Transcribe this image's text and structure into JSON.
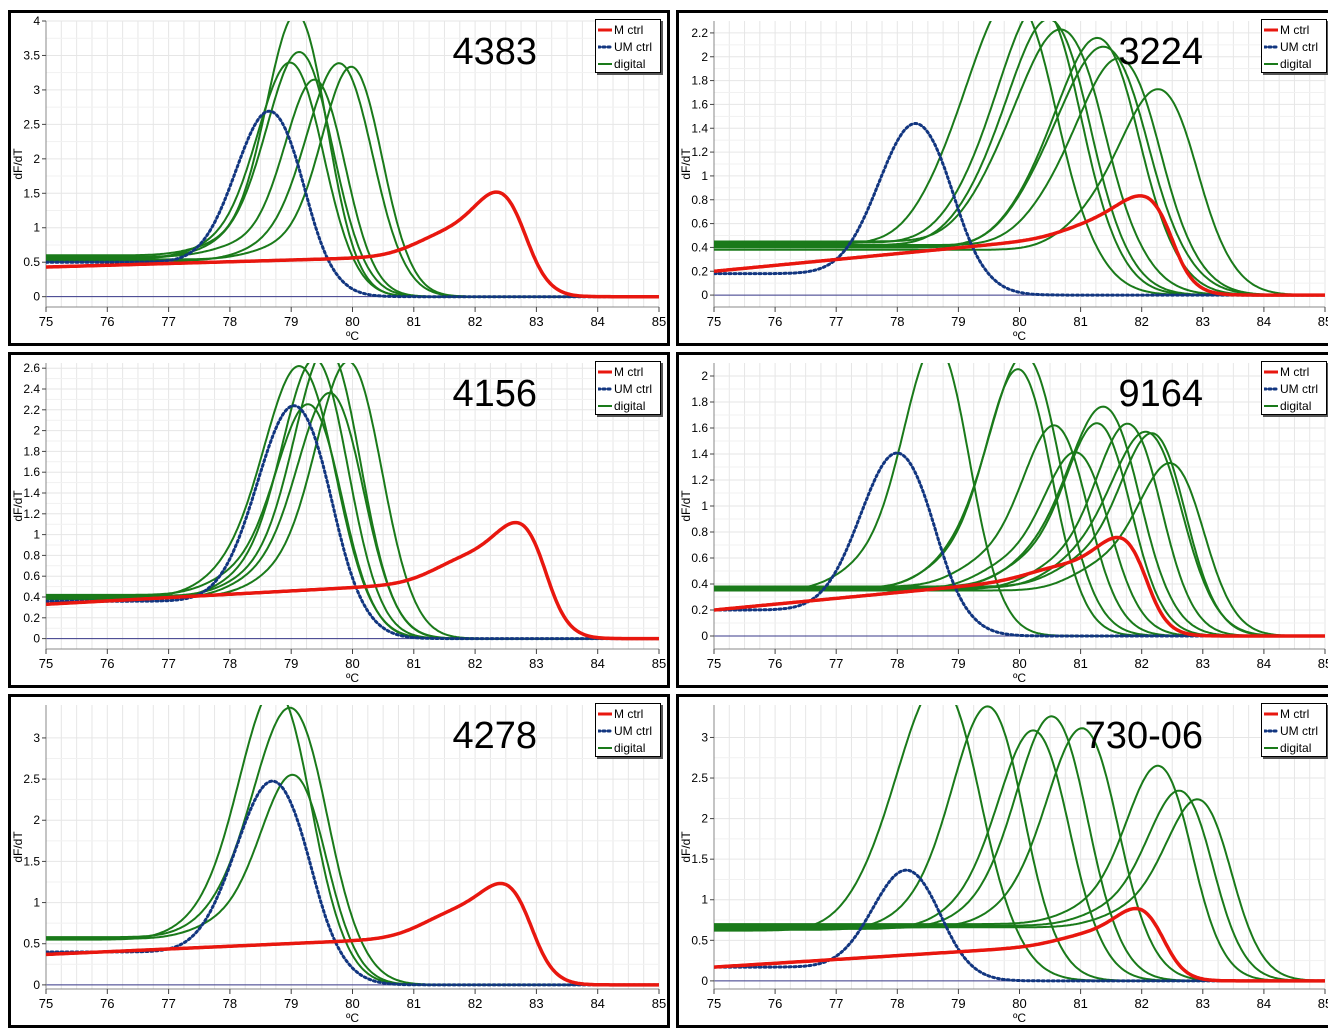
{
  "colors": {
    "m_ctrl": "#e8170f",
    "um_ctrl": "#123680",
    "digital": "#1a7a1a",
    "grid": "#e6e6e6",
    "baseline": "#3a3a8a"
  },
  "legend": {
    "m_ctrl": "M ctrl",
    "um_ctrl": "UM ctrl",
    "digital": "digital"
  },
  "chart_data": [
    {
      "type": "line",
      "title": "4383",
      "xlabel": "ºC",
      "ylabel": "dF/dT",
      "xlim": [
        75,
        85
      ],
      "ylim": [
        -0.15,
        4
      ],
      "xticks": [
        "75",
        "76",
        "77",
        "78",
        "79",
        "80",
        "81",
        "82",
        "83",
        "84",
        "85"
      ],
      "yticks": [
        "0",
        "0.5",
        "1",
        "1.5",
        "2",
        "2.5",
        "3",
        "3.5",
        "4"
      ],
      "ytick_values": [
        0,
        0.5,
        1,
        1.5,
        2,
        2.5,
        3,
        3.5,
        4
      ],
      "grid": true,
      "legend_position": "top-right",
      "m_ctrl": {
        "base_start": 0.43,
        "base_end": 0.62,
        "shoulder_x": 81.6,
        "shoulder_h": 0.32,
        "peak_x": 82.45,
        "peak_y": 1.45,
        "width": 0.42,
        "end": 0.0
      },
      "um_ctrl": {
        "base_start": 0.5,
        "peak_x": 78.65,
        "peak_y": 2.5,
        "width": 0.55,
        "end": 0.0
      },
      "digital": [
        {
          "base": 0.55,
          "peak_x": 79.0,
          "peak_y": 3.2,
          "width": 0.55
        },
        {
          "base": 0.6,
          "peak_x": 79.1,
          "peak_y": 3.9,
          "width": 0.5
        },
        {
          "base": 0.56,
          "peak_x": 79.15,
          "peak_y": 3.35,
          "width": 0.55
        },
        {
          "base": 0.58,
          "peak_x": 79.4,
          "peak_y": 2.95,
          "width": 0.5
        },
        {
          "base": 0.52,
          "peak_x": 79.8,
          "peak_y": 3.2,
          "width": 0.55
        },
        {
          "base": 0.54,
          "peak_x": 80.0,
          "peak_y": 3.15,
          "width": 0.5
        }
      ]
    },
    {
      "type": "line",
      "title": "3224",
      "xlabel": "ºC",
      "ylabel": "dF/dT",
      "xlim": [
        75,
        85
      ],
      "ylim": [
        -0.1,
        2.3
      ],
      "xticks": [
        "75",
        "76",
        "77",
        "78",
        "79",
        "80",
        "81",
        "82",
        "83",
        "84",
        "85"
      ],
      "yticks": [
        "0",
        "0.2",
        "0.4",
        "0.6",
        "0.8",
        "1",
        "1.2",
        "1.4",
        "1.6",
        "1.8",
        "2",
        "2.2"
      ],
      "ytick_values": [
        0,
        0.2,
        0.4,
        0.6,
        0.8,
        1,
        1.2,
        1.4,
        1.6,
        1.8,
        2,
        2.2
      ],
      "grid": true,
      "legend_position": "top-right",
      "m_ctrl": {
        "base_start": 0.2,
        "base_end": 0.55,
        "shoulder_x": 81.3,
        "shoulder_h": 0.1,
        "peak_x": 82.1,
        "peak_y": 0.82,
        "width": 0.45,
        "end": 0.0
      },
      "um_ctrl": {
        "base_start": 0.18,
        "peak_x": 78.3,
        "peak_y": 1.37,
        "width": 0.6,
        "end": 0.0
      },
      "digital": [
        {
          "base": 0.43,
          "peak_x": 79.9,
          "peak_y": 2.33,
          "width": 0.75
        },
        {
          "base": 0.44,
          "peak_x": 80.35,
          "peak_y": 2.27,
          "width": 0.7
        },
        {
          "base": 0.42,
          "peak_x": 80.5,
          "peak_y": 2.15,
          "width": 0.7
        },
        {
          "base": 0.45,
          "peak_x": 80.7,
          "peak_y": 2.05,
          "width": 0.75
        },
        {
          "base": 0.4,
          "peak_x": 81.3,
          "peak_y": 2.0,
          "width": 0.7
        },
        {
          "base": 0.41,
          "peak_x": 81.4,
          "peak_y": 1.92,
          "width": 0.75
        },
        {
          "base": 0.42,
          "peak_x": 81.65,
          "peak_y": 1.82,
          "width": 0.7
        },
        {
          "base": 0.38,
          "peak_x": 82.3,
          "peak_y": 1.58,
          "width": 0.65
        }
      ]
    },
    {
      "type": "line",
      "title": "4156",
      "xlabel": "ºC",
      "ylabel": "dF/dT",
      "xlim": [
        75,
        85
      ],
      "ylim": [
        -0.1,
        2.65
      ],
      "xticks": [
        "75",
        "76",
        "77",
        "78",
        "79",
        "80",
        "81",
        "82",
        "83",
        "84",
        "85"
      ],
      "yticks": [
        "0",
        "0.2",
        "0.4",
        "0.6",
        "0.8",
        "1",
        "1.2",
        "1.4",
        "1.6",
        "1.8",
        "2",
        "2.2",
        "2.4",
        "2.6"
      ],
      "ytick_values": [
        0,
        0.2,
        0.4,
        0.6,
        0.8,
        1,
        1.2,
        1.4,
        1.6,
        1.8,
        2,
        2.2,
        2.4,
        2.6
      ],
      "grid": true,
      "legend_position": "top-right",
      "m_ctrl": {
        "base_start": 0.33,
        "base_end": 0.58,
        "shoulder_x": 81.9,
        "shoulder_h": 0.22,
        "peak_x": 82.78,
        "peak_y": 1.08,
        "width": 0.42,
        "end": 0.0
      },
      "um_ctrl": {
        "base_start": 0.36,
        "peak_x": 79.05,
        "peak_y": 2.1,
        "width": 0.6,
        "end": 0.0
      },
      "digital": [
        {
          "base": 0.4,
          "peak_x": 79.15,
          "peak_y": 2.47,
          "width": 0.6
        },
        {
          "base": 0.42,
          "peak_x": 79.3,
          "peak_y": 2.1,
          "width": 0.55
        },
        {
          "base": 0.38,
          "peak_x": 79.4,
          "peak_y": 2.55,
          "width": 0.55
        },
        {
          "base": 0.41,
          "peak_x": 79.6,
          "peak_y": 2.65,
          "width": 0.55
        },
        {
          "base": 0.39,
          "peak_x": 79.65,
          "peak_y": 2.22,
          "width": 0.55
        },
        {
          "base": 0.4,
          "peak_x": 79.95,
          "peak_y": 2.52,
          "width": 0.55
        }
      ]
    },
    {
      "type": "line",
      "title": "9164",
      "xlabel": "ºC",
      "ylabel": "dF/dT",
      "xlim": [
        75,
        85
      ],
      "ylim": [
        -0.1,
        2.1
      ],
      "xticks": [
        "75",
        "76",
        "77",
        "78",
        "79",
        "80",
        "81",
        "82",
        "83",
        "84",
        "85"
      ],
      "yticks": [
        "0",
        "0.2",
        "0.4",
        "0.6",
        "0.8",
        "1",
        "1.2",
        "1.4",
        "1.6",
        "1.8",
        "2"
      ],
      "ytick_values": [
        0,
        0.2,
        0.4,
        0.6,
        0.8,
        1,
        1.2,
        1.4,
        1.6,
        1.8,
        2
      ],
      "grid": true,
      "legend_position": "top-right",
      "m_ctrl": {
        "base_start": 0.2,
        "base_end": 0.5,
        "shoulder_x": 80.7,
        "shoulder_h": 0.08,
        "peak_x": 81.7,
        "peak_y": 0.77,
        "width": 0.42,
        "end": 0.0
      },
      "um_ctrl": {
        "base_start": 0.2,
        "peak_x": 78.0,
        "peak_y": 1.33,
        "width": 0.6,
        "end": 0.0
      },
      "digital": [
        {
          "base": 0.35,
          "peak_x": 78.65,
          "peak_y": 2.12,
          "width": 0.55
        },
        {
          "base": 0.36,
          "peak_x": 80.0,
          "peak_y": 1.92,
          "width": 0.55
        },
        {
          "base": 0.37,
          "peak_x": 80.1,
          "peak_y": 2.02,
          "width": 0.6
        },
        {
          "base": 0.38,
          "peak_x": 80.6,
          "peak_y": 1.48,
          "width": 0.55
        },
        {
          "base": 0.36,
          "peak_x": 80.95,
          "peak_y": 1.28,
          "width": 0.55
        },
        {
          "base": 0.37,
          "peak_x": 81.3,
          "peak_y": 1.5,
          "width": 0.55
        },
        {
          "base": 0.38,
          "peak_x": 81.4,
          "peak_y": 1.62,
          "width": 0.6
        },
        {
          "base": 0.36,
          "peak_x": 81.8,
          "peak_y": 1.5,
          "width": 0.55
        },
        {
          "base": 0.37,
          "peak_x": 82.1,
          "peak_y": 1.43,
          "width": 0.6
        },
        {
          "base": 0.38,
          "peak_x": 82.2,
          "peak_y": 1.42,
          "width": 0.55
        },
        {
          "base": 0.35,
          "peak_x": 82.5,
          "peak_y": 1.2,
          "width": 0.55
        }
      ]
    },
    {
      "type": "line",
      "title": "4278",
      "xlabel": "ºC",
      "ylabel": "dF/dT",
      "xlim": [
        75,
        85
      ],
      "ylim": [
        -0.05,
        3.4
      ],
      "xticks": [
        "75",
        "76",
        "77",
        "78",
        "79",
        "80",
        "81",
        "82",
        "83",
        "84",
        "85"
      ],
      "yticks": [
        "0",
        "0.5",
        "1",
        "1.5",
        "2",
        "2.5",
        "3"
      ],
      "ytick_values": [
        0,
        0.5,
        1,
        1.5,
        2,
        2.5,
        3
      ],
      "grid": true,
      "legend_position": "top-right",
      "m_ctrl": {
        "base_start": 0.37,
        "base_end": 0.62,
        "shoulder_x": 81.7,
        "shoulder_h": 0.28,
        "peak_x": 82.55,
        "peak_y": 1.17,
        "width": 0.42,
        "end": 0.0
      },
      "um_ctrl": {
        "base_start": 0.4,
        "peak_x": 78.7,
        "peak_y": 2.32,
        "width": 0.6,
        "end": 0.0
      },
      "digital": [
        {
          "base": 0.55,
          "peak_x": 78.75,
          "peak_y": 3.4,
          "width": 0.6
        },
        {
          "base": 0.58,
          "peak_x": 79.0,
          "peak_y": 3.15,
          "width": 0.62
        },
        {
          "base": 0.56,
          "peak_x": 79.05,
          "peak_y": 2.35,
          "width": 0.55
        }
      ]
    },
    {
      "type": "line",
      "title": "730-06",
      "xlabel": "ºC",
      "ylabel": "dF/dT",
      "xlim": [
        75,
        85
      ],
      "ylim": [
        -0.1,
        3.4
      ],
      "xticks": [
        "75",
        "76",
        "77",
        "78",
        "79",
        "80",
        "81",
        "82",
        "83",
        "84",
        "85"
      ],
      "yticks": [
        "0",
        "0.5",
        "1",
        "1.5",
        "2",
        "2.5",
        "3"
      ],
      "ytick_values": [
        0,
        0.5,
        1,
        1.5,
        2,
        2.5,
        3
      ],
      "grid": true,
      "legend_position": "top-right",
      "m_ctrl": {
        "base_start": 0.17,
        "base_end": 0.5,
        "shoulder_x": 81.2,
        "shoulder_h": 0.12,
        "peak_x": 82.0,
        "peak_y": 0.88,
        "width": 0.4,
        "end": 0.0
      },
      "um_ctrl": {
        "base_start": 0.17,
        "peak_x": 78.15,
        "peak_y": 1.3,
        "width": 0.55,
        "end": 0.0
      },
      "digital": [
        {
          "base": 0.62,
          "peak_x": 78.7,
          "peak_y": 3.43,
          "width": 0.7
        },
        {
          "base": 0.63,
          "peak_x": 79.5,
          "peak_y": 3.15,
          "width": 0.6
        },
        {
          "base": 0.64,
          "peak_x": 80.25,
          "peak_y": 2.85,
          "width": 0.6
        },
        {
          "base": 0.65,
          "peak_x": 80.55,
          "peak_y": 3.02,
          "width": 0.6
        },
        {
          "base": 0.66,
          "peak_x": 81.05,
          "peak_y": 2.87,
          "width": 0.6
        },
        {
          "base": 0.7,
          "peak_x": 82.3,
          "peak_y": 2.4,
          "width": 0.55
        },
        {
          "base": 0.68,
          "peak_x": 82.65,
          "peak_y": 2.1,
          "width": 0.55
        },
        {
          "base": 0.66,
          "peak_x": 82.95,
          "peak_y": 2.0,
          "width": 0.55
        }
      ]
    }
  ]
}
